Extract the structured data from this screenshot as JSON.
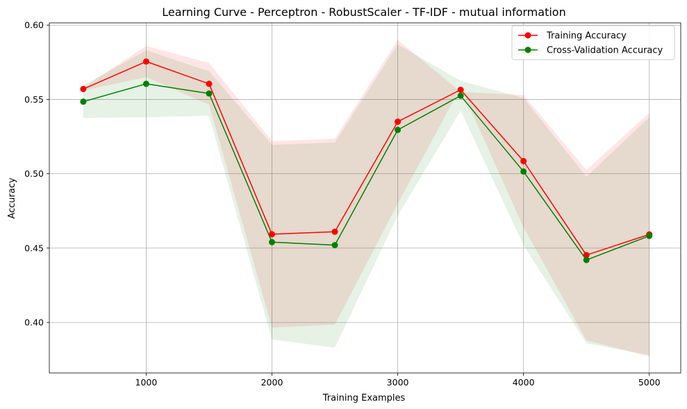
{
  "chart_data": {
    "type": "line",
    "title": "Learning Curve - Perceptron - RobustScaler - TF-IDF - mutual information",
    "xlabel": "Training Examples",
    "ylabel": "Accuracy",
    "xlim": [
      230,
      5250
    ],
    "ylim": [
      0.366,
      0.6015
    ],
    "xticks": [
      1000,
      2000,
      3000,
      4000,
      5000
    ],
    "xtick_labels": [
      "1000",
      "2000",
      "3000",
      "4000",
      "5000"
    ],
    "yticks": [
      0.4,
      0.45,
      0.5,
      0.55,
      0.6
    ],
    "ytick_labels": [
      "0.40",
      "0.45",
      "0.50",
      "0.55",
      "0.60"
    ],
    "grid": true,
    "legend_position": "top-right",
    "x": [
      500,
      1000,
      1500,
      2000,
      2500,
      3000,
      3500,
      4000,
      4500,
      5000
    ],
    "series": [
      {
        "name": "Training Accuracy",
        "color": "#ff0000",
        "band_color": "#ff0000",
        "marker": "circle",
        "values": [
          0.557,
          0.5755,
          0.5605,
          0.4593,
          0.461,
          0.535,
          0.5565,
          0.5085,
          0.4453,
          0.4592
        ],
        "band_upper": [
          0.558,
          0.586,
          0.5745,
          0.522,
          0.5235,
          0.59,
          0.555,
          0.553,
          0.5025,
          0.541
        ],
        "band_lower": [
          0.556,
          0.565,
          0.5465,
          0.3965,
          0.3985,
          0.48,
          0.558,
          0.464,
          0.388,
          0.377
        ]
      },
      {
        "name": "Cross-Validation Accuracy",
        "color": "#008000",
        "band_color": "#008000",
        "marker": "circle",
        "values": [
          0.5485,
          0.5605,
          0.554,
          0.454,
          0.452,
          0.5295,
          0.5525,
          0.5015,
          0.442,
          0.4582
        ],
        "band_upper": [
          0.5595,
          0.583,
          0.569,
          0.5195,
          0.521,
          0.587,
          0.5625,
          0.551,
          0.498,
          0.538
        ],
        "band_lower": [
          0.5375,
          0.538,
          0.539,
          0.3885,
          0.383,
          0.472,
          0.5425,
          0.452,
          0.386,
          0.378
        ]
      }
    ]
  }
}
